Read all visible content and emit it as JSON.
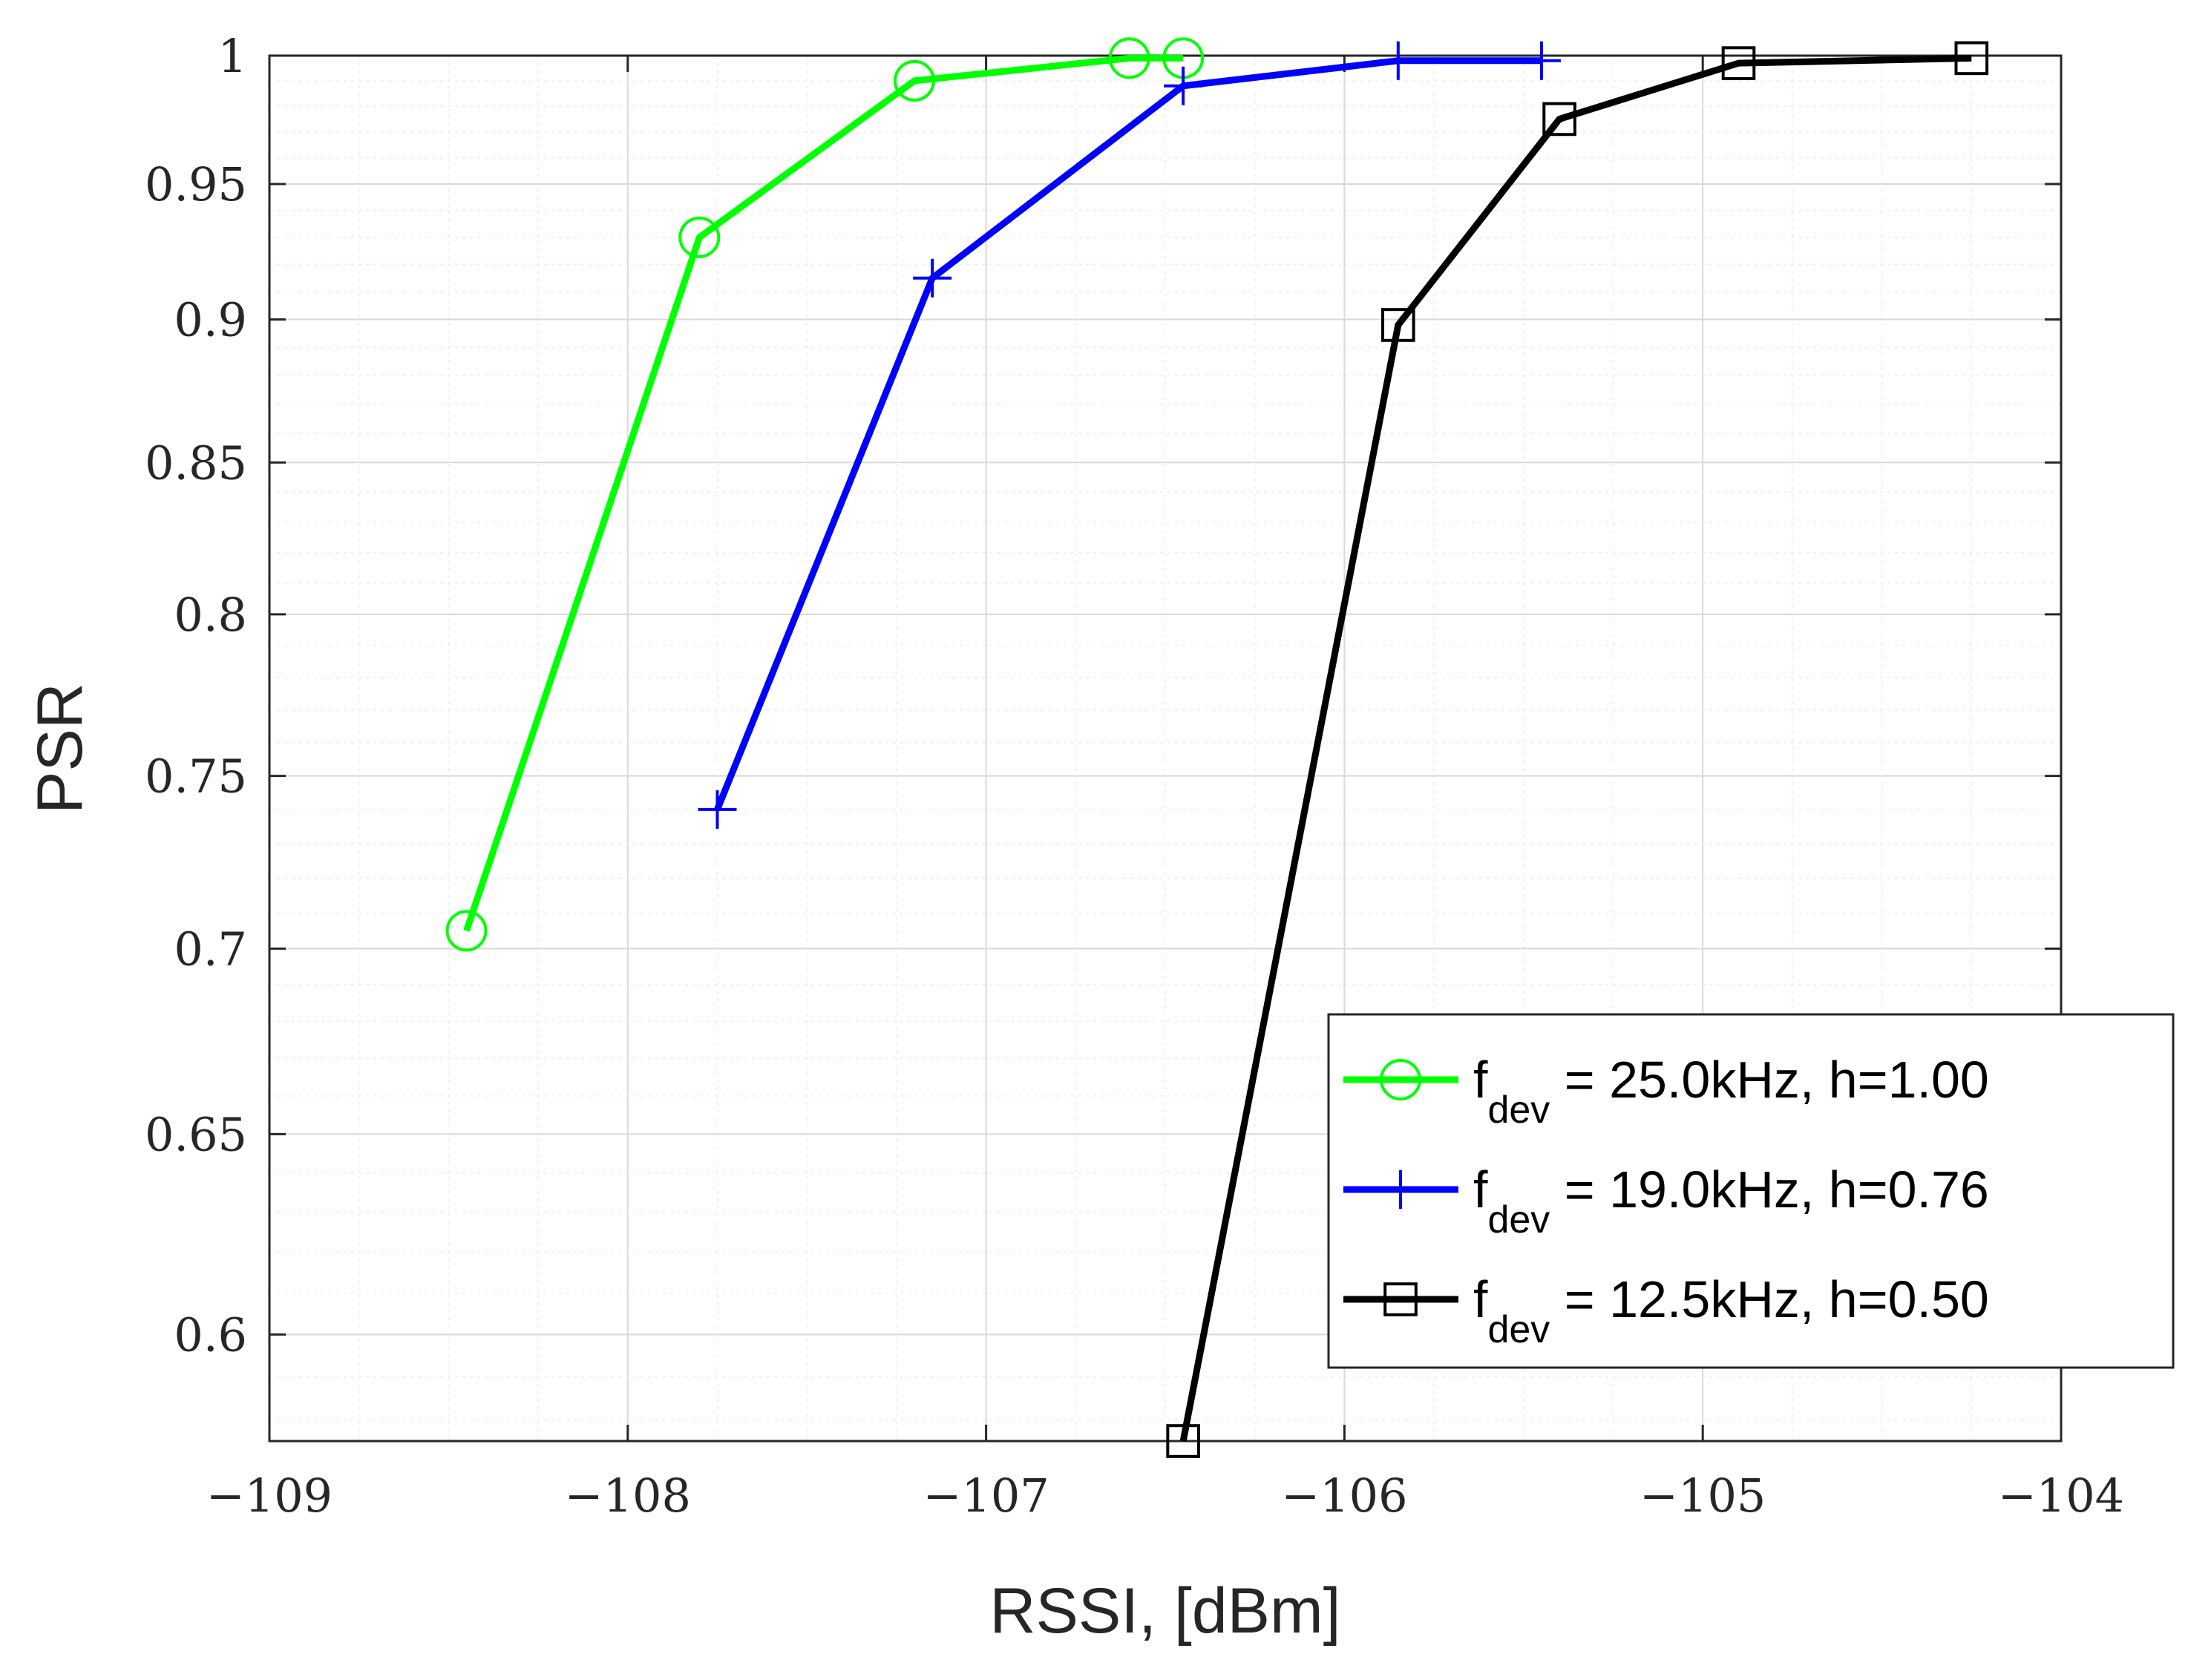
{
  "chart_data": {
    "type": "line",
    "xlabel": "RSSI, [dBm]",
    "ylabel": "PSR",
    "xlim": [
      -109,
      -104
    ],
    "ylim": [
      0.575,
      1.0
    ],
    "y_scale": "log",
    "grid": true,
    "minor_grid": true,
    "x_ticks": [
      -109,
      -108,
      -107,
      -106,
      -105,
      -104
    ],
    "x_tick_labels": [
      "−109",
      "−108",
      "−107",
      "−106",
      "−105",
      "−104"
    ],
    "y_ticks": [
      0.6,
      0.65,
      0.7,
      0.75,
      0.8,
      0.85,
      0.9,
      0.95,
      1
    ],
    "y_tick_labels": [
      "0.6",
      "0.65",
      "0.7",
      "0.75",
      "0.8",
      "0.85",
      "0.9",
      "0.95",
      "1"
    ],
    "legend_position": "bottom-right",
    "series": [
      {
        "name_prefix": "f",
        "name_sub": "dev",
        "name_suffix": " = 25.0kHz, h=1.00",
        "color": "#00ff00",
        "marker": "circle",
        "x": [
          -108.45,
          -107.8,
          -107.2,
          -106.6,
          -106.45
        ],
        "y": [
          0.705,
          0.93,
          0.99,
          0.999,
          0.999
        ]
      },
      {
        "name_prefix": "f",
        "name_sub": "dev",
        "name_suffix": " = 19.0kHz, h=0.76",
        "color": "#0000ff",
        "marker": "plus",
        "x": [
          -107.75,
          -107.15,
          -106.45,
          -105.85,
          -105.45
        ],
        "y": [
          0.74,
          0.915,
          0.988,
          0.998,
          0.998
        ]
      },
      {
        "name_prefix": "f",
        "name_sub": "dev",
        "name_suffix": " = 12.5kHz, h=0.50",
        "color": "#000000",
        "marker": "square",
        "x": [
          -106.45,
          -105.85,
          -105.4,
          -104.9,
          -104.25
        ],
        "y": [
          0.575,
          0.898,
          0.975,
          0.997,
          0.999
        ]
      }
    ]
  }
}
